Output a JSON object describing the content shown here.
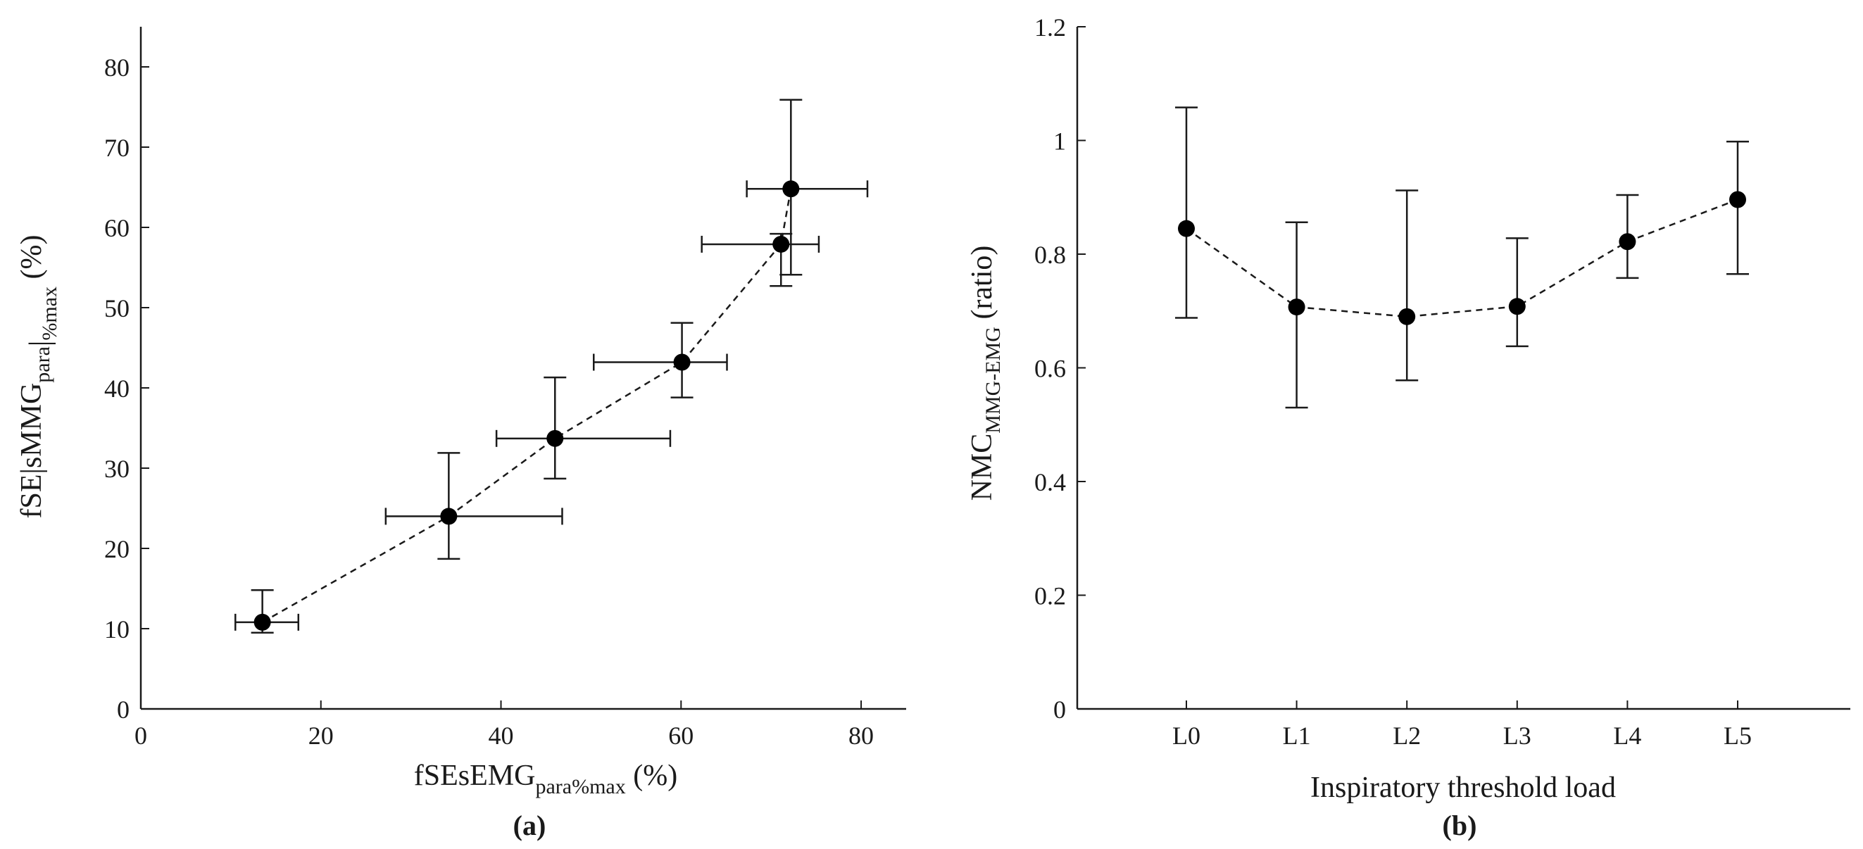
{
  "chart_data": [
    {
      "type": "scatter",
      "panel_label": "(a)",
      "xlabel": {
        "main": "fSEsEMG",
        "sub": "para%max",
        "unit": " (%)"
      },
      "ylabel": {
        "main": "fSE|sMMG",
        "sub1": "para",
        "bar": "|",
        "sub2": "%max",
        "unit": " (%)"
      },
      "xlim": [
        0,
        85
      ],
      "ylim": [
        0,
        85
      ],
      "xticks": [
        0,
        20,
        40,
        60,
        80
      ],
      "yticks": [
        0,
        10,
        20,
        30,
        40,
        50,
        60,
        70,
        80
      ],
      "line_style": "dashed",
      "points": [
        {
          "x": 13.5,
          "y": 10.8,
          "xerr_low": 10.5,
          "xerr_high": 17.5,
          "yerr_low": 9.5,
          "yerr_high": 14.8
        },
        {
          "x": 34.2,
          "y": 24.0,
          "xerr_low": 27.2,
          "xerr_high": 46.8,
          "yerr_low": 18.7,
          "yerr_high": 31.9
        },
        {
          "x": 46.0,
          "y": 33.7,
          "xerr_low": 39.5,
          "xerr_high": 58.8,
          "yerr_low": 28.7,
          "yerr_high": 41.3
        },
        {
          "x": 60.1,
          "y": 43.2,
          "xerr_low": 50.3,
          "xerr_high": 65.1,
          "yerr_low": 38.8,
          "yerr_high": 48.1
        },
        {
          "x": 71.1,
          "y": 57.9,
          "xerr_low": 62.3,
          "xerr_high": 75.3,
          "yerr_low": 52.7,
          "yerr_high": 59.2
        },
        {
          "x": 72.2,
          "y": 64.8,
          "xerr_low": 67.3,
          "xerr_high": 80.7,
          "yerr_low": 54.1,
          "yerr_high": 75.9
        }
      ]
    },
    {
      "type": "line",
      "panel_label": "(b)",
      "xlabel": "Inspiratory threshold load",
      "ylabel": {
        "main": "NMC",
        "sub": "MMG-EMG",
        "unit": " (ratio)"
      },
      "categories": [
        "L0",
        "L1",
        "L2",
        "L3",
        "L4",
        "L5"
      ],
      "ylim": [
        0,
        1.2
      ],
      "yticks": [
        "0",
        "0.2",
        "0.4",
        "0.6",
        "0.8",
        "1",
        "1.2"
      ],
      "line_style": "dashed",
      "series": [
        {
          "name": "NMC",
          "values": [
            0.845,
            0.707,
            0.69,
            0.708,
            0.822,
            0.896
          ],
          "err_low": [
            0.688,
            0.53,
            0.578,
            0.638,
            0.758,
            0.765
          ],
          "err_high": [
            1.058,
            0.856,
            0.912,
            0.828,
            0.904,
            0.998
          ]
        }
      ]
    }
  ]
}
